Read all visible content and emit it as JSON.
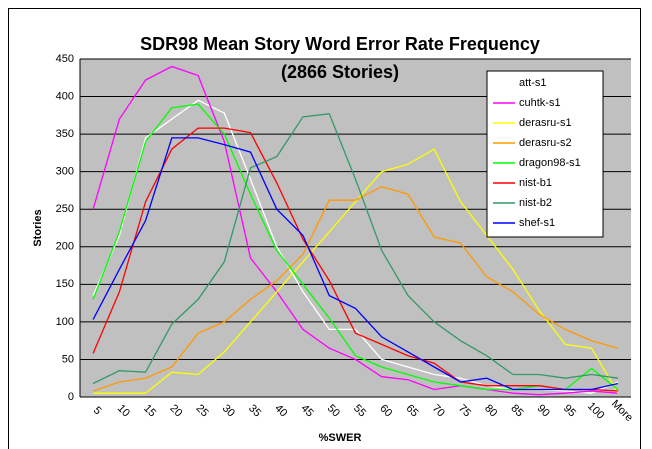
{
  "chart_data": {
    "type": "line",
    "title": "SDR98 Mean Story Word Error Rate Frequency",
    "subtitle": "(2866 Stories)",
    "x_label": "%SWER",
    "y_label": "Stories",
    "categories": [
      "5",
      "10",
      "15",
      "20",
      "25",
      "30",
      "35",
      "40",
      "45",
      "50",
      "55",
      "60",
      "65",
      "70",
      "75",
      "80",
      "85",
      "90",
      "95",
      "100",
      "More"
    ],
    "ylim": [
      0,
      450
    ],
    "yticks": [
      0,
      50,
      100,
      150,
      200,
      250,
      300,
      350,
      400,
      450
    ],
    "grid": true,
    "series": [
      {
        "name": "att-s1",
        "color": "#ffffff",
        "values": [
          135,
          215,
          345,
          370,
          395,
          378,
          290,
          200,
          140,
          90,
          90,
          50,
          40,
          30,
          25,
          15,
          10,
          10,
          8,
          5,
          20
        ]
      },
      {
        "name": "cuhtk-s1",
        "color": "#ff00ff",
        "values": [
          250,
          370,
          422,
          440,
          428,
          340,
          185,
          140,
          90,
          65,
          50,
          27,
          23,
          10,
          15,
          10,
          5,
          3,
          5,
          8,
          5
        ]
      },
      {
        "name": "derasru-s1",
        "color": "#ffff00",
        "values": [
          5,
          5,
          5,
          33,
          30,
          60,
          100,
          140,
          180,
          220,
          260,
          300,
          310,
          330,
          260,
          215,
          170,
          115,
          70,
          65,
          5
        ]
      },
      {
        "name": "derasru-s2",
        "color": "#ff9900",
        "values": [
          8,
          20,
          25,
          40,
          85,
          100,
          130,
          155,
          190,
          262,
          262,
          280,
          270,
          213,
          205,
          160,
          140,
          110,
          90,
          75,
          65
        ]
      },
      {
        "name": "dragon98-s1",
        "color": "#00ff00",
        "values": [
          130,
          220,
          340,
          385,
          390,
          350,
          270,
          195,
          150,
          105,
          55,
          40,
          30,
          20,
          15,
          10,
          10,
          15,
          10,
          38,
          10
        ]
      },
      {
        "name": "nist-b1",
        "color": "#ff0000",
        "values": [
          58,
          140,
          260,
          330,
          358,
          358,
          352,
          285,
          210,
          155,
          85,
          70,
          55,
          45,
          20,
          15,
          15,
          15,
          10,
          10,
          8
        ]
      },
      {
        "name": "nist-b2",
        "color": "#339966",
        "values": [
          18,
          35,
          33,
          97,
          130,
          180,
          305,
          320,
          373,
          377,
          290,
          195,
          135,
          100,
          75,
          55,
          30,
          30,
          25,
          30,
          25
        ]
      },
      {
        "name": "shef-s1",
        "color": "#0000ff",
        "values": [
          103,
          170,
          235,
          345,
          345,
          336,
          326,
          250,
          215,
          135,
          118,
          80,
          60,
          40,
          20,
          25,
          10,
          10,
          10,
          10,
          18
        ]
      }
    ]
  }
}
